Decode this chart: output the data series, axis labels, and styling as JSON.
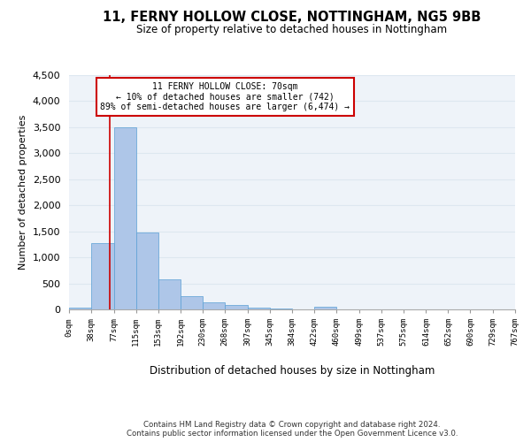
{
  "title1": "11, FERNY HOLLOW CLOSE, NOTTINGHAM, NG5 9BB",
  "title2": "Size of property relative to detached houses in Nottingham",
  "xlabel": "Distribution of detached houses by size in Nottingham",
  "ylabel": "Number of detached properties",
  "bin_edges": [
    0,
    38,
    77,
    115,
    153,
    192,
    230,
    268,
    307,
    345,
    384,
    422,
    460,
    499,
    537,
    575,
    614,
    652,
    690,
    729,
    767
  ],
  "bar_heights": [
    35,
    1270,
    3500,
    1480,
    580,
    250,
    140,
    90,
    40,
    20,
    5,
    50,
    2,
    0,
    0,
    0,
    0,
    0,
    0,
    0
  ],
  "bar_color": "#aec6e8",
  "bar_edge_color": "#5a9fd4",
  "grid_color": "#dde7f0",
  "property_line_x": 70,
  "property_line_color": "#cc0000",
  "annotation_text": "11 FERNY HOLLOW CLOSE: 70sqm\n← 10% of detached houses are smaller (742)\n89% of semi-detached houses are larger (6,474) →",
  "annotation_box_color": "#cc0000",
  "ylim": [
    0,
    4500
  ],
  "yticks": [
    0,
    500,
    1000,
    1500,
    2000,
    2500,
    3000,
    3500,
    4000,
    4500
  ],
  "tick_labels": [
    "0sqm",
    "38sqm",
    "77sqm",
    "115sqm",
    "153sqm",
    "192sqm",
    "230sqm",
    "268sqm",
    "307sqm",
    "345sqm",
    "384sqm",
    "422sqm",
    "460sqm",
    "499sqm",
    "537sqm",
    "575sqm",
    "614sqm",
    "652sqm",
    "690sqm",
    "729sqm",
    "767sqm"
  ],
  "footer_text": "Contains HM Land Registry data © Crown copyright and database right 2024.\nContains public sector information licensed under the Open Government Licence v3.0.",
  "bg_color": "#eef3f9"
}
